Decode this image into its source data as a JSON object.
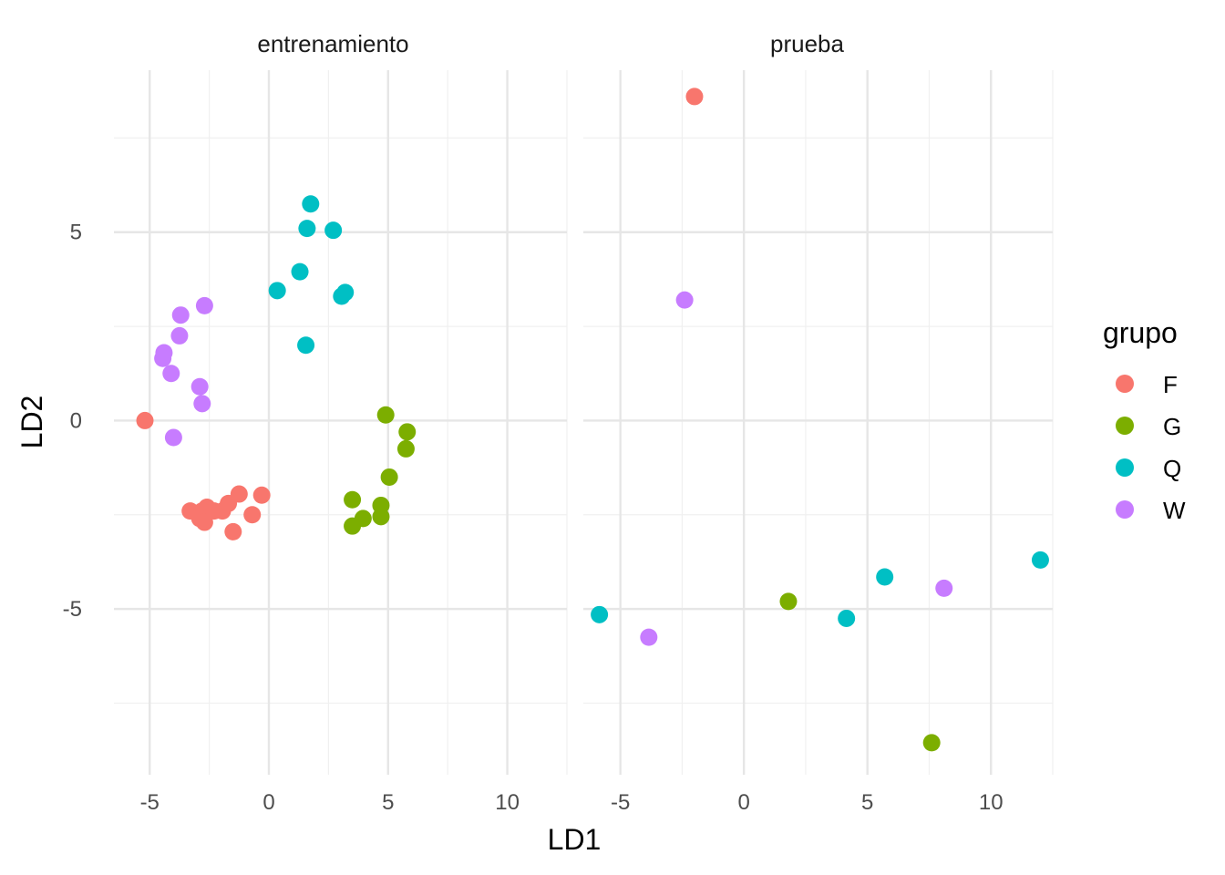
{
  "chart_data": {
    "type": "scatter",
    "xlabel": "LD1",
    "ylabel": "LD2",
    "xlim": [
      -6.5,
      12.5
    ],
    "ylim": [
      -9.4,
      9.3
    ],
    "x_ticks": [
      -5,
      0,
      5,
      10
    ],
    "y_ticks": [
      -5,
      0,
      5
    ],
    "x_tick_labels": [
      "-5",
      "0",
      "5",
      "10"
    ],
    "y_tick_labels": [
      "-5",
      "0",
      "5"
    ],
    "grid": true,
    "legend": {
      "title": "grupo",
      "position": "right",
      "entries": [
        {
          "label": "F",
          "color": "#F8766D"
        },
        {
          "label": "G",
          "color": "#7CAE00"
        },
        {
          "label": "Q",
          "color": "#00BFC4"
        },
        {
          "label": "W",
          "color": "#C77CFF"
        }
      ]
    },
    "panels": [
      {
        "title": "entrenamiento",
        "series": [
          {
            "name": "F",
            "points": [
              [
                -5.2,
                0.0
              ],
              [
                -3.3,
                -2.4
              ],
              [
                -2.6,
                -2.3
              ],
              [
                -2.8,
                -2.4
              ],
              [
                -2.9,
                -2.6
              ],
              [
                -2.7,
                -2.7
              ],
              [
                -2.3,
                -2.4
              ],
              [
                -1.95,
                -2.4
              ],
              [
                -1.7,
                -2.2
              ],
              [
                -1.25,
                -1.95
              ],
              [
                -0.3,
                -1.98
              ],
              [
                -0.7,
                -2.5
              ],
              [
                -1.5,
                -2.95
              ]
            ]
          },
          {
            "name": "G",
            "points": [
              [
                4.9,
                0.15
              ],
              [
                5.8,
                -0.3
              ],
              [
                5.75,
                -0.75
              ],
              [
                5.05,
                -1.5
              ],
              [
                3.5,
                -2.1
              ],
              [
                4.7,
                -2.25
              ],
              [
                4.7,
                -2.55
              ],
              [
                3.95,
                -2.6
              ],
              [
                3.5,
                -2.8
              ]
            ]
          },
          {
            "name": "Q",
            "points": [
              [
                1.75,
                5.75
              ],
              [
                1.6,
                5.1
              ],
              [
                2.7,
                5.05
              ],
              [
                1.3,
                3.95
              ],
              [
                0.35,
                3.45
              ],
              [
                3.05,
                3.3
              ],
              [
                3.2,
                3.4
              ],
              [
                1.55,
                2.0
              ]
            ]
          },
          {
            "name": "W",
            "points": [
              [
                -2.7,
                3.05
              ],
              [
                -3.7,
                2.8
              ],
              [
                -3.75,
                2.25
              ],
              [
                -4.4,
                1.8
              ],
              [
                -4.45,
                1.65
              ],
              [
                -4.1,
                1.25
              ],
              [
                -2.9,
                0.9
              ],
              [
                -2.8,
                0.45
              ],
              [
                -4.0,
                -0.45
              ]
            ]
          }
        ]
      },
      {
        "title": "prueba",
        "series": [
          {
            "name": "F",
            "points": [
              [
                -2.0,
                8.6
              ]
            ]
          },
          {
            "name": "G",
            "points": [
              [
                1.8,
                -4.8
              ],
              [
                7.6,
                -8.55
              ]
            ]
          },
          {
            "name": "Q",
            "points": [
              [
                -5.85,
                -5.15
              ],
              [
                4.15,
                -5.25
              ],
              [
                5.7,
                -4.15
              ],
              [
                12.0,
                -3.7
              ]
            ]
          },
          {
            "name": "W",
            "points": [
              [
                -2.4,
                3.2
              ],
              [
                -3.85,
                -5.75
              ],
              [
                8.1,
                -4.45
              ]
            ]
          }
        ]
      }
    ]
  }
}
